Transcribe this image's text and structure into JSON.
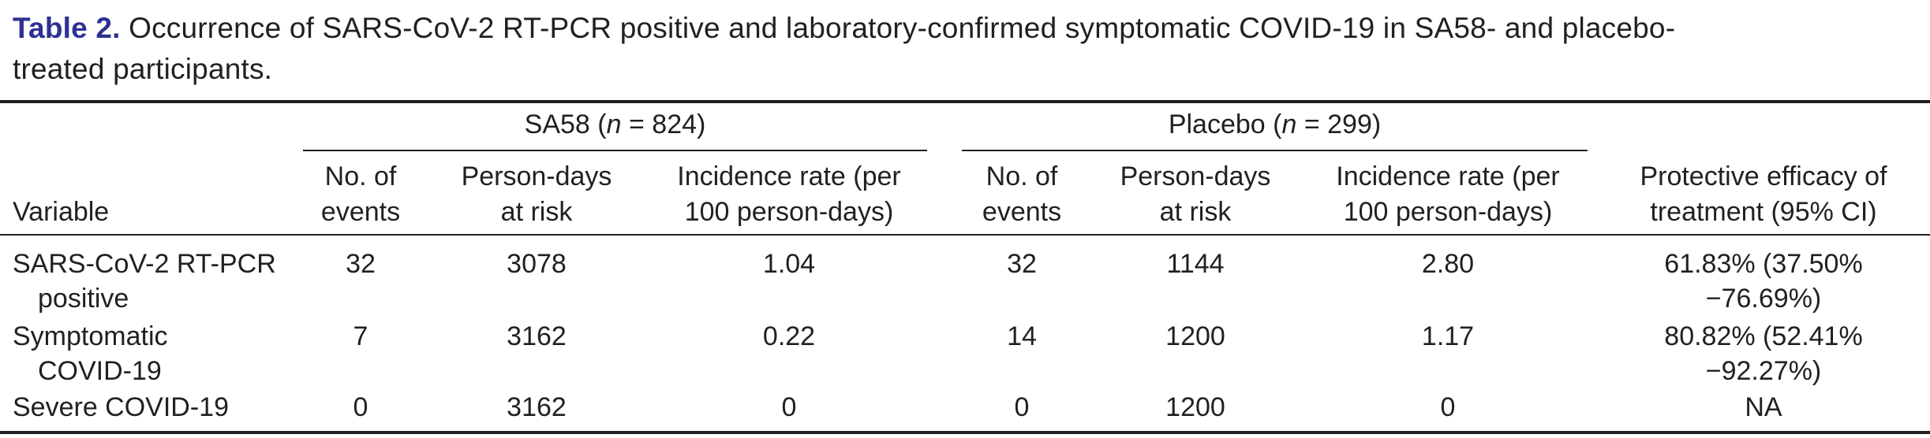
{
  "caption": {
    "label": "Table 2.",
    "text_line1": "Occurrence of SARS-CoV-2 RT-PCR positive and laboratory-confirmed symptomatic COVID-19 in SA58- and placebo-",
    "text_line2": "treated participants."
  },
  "groups": {
    "sa58": {
      "prefix": "SA58 (",
      "n_var": "n",
      "suffix": " = 824)"
    },
    "placebo": {
      "prefix": "Placebo (",
      "n_var": "n",
      "suffix": " = 299)"
    }
  },
  "headers": {
    "variable": "Variable",
    "events": [
      "No. of",
      "events"
    ],
    "person_days": [
      "Person-days",
      "at risk"
    ],
    "incidence": [
      "Incidence rate (per",
      "100 person-days)"
    ],
    "efficacy": [
      "Protective efficacy of",
      "treatment (95% CI)"
    ]
  },
  "rows": [
    {
      "variable": [
        "SARS-CoV-2 RT-PCR",
        "positive"
      ],
      "sa58_events": "32",
      "sa58_days": "3078",
      "sa58_rate": "1.04",
      "pl_events": "32",
      "pl_days": "1144",
      "pl_rate": "2.80",
      "efficacy": [
        "61.83% (37.50%",
        "−76.69%)"
      ]
    },
    {
      "variable": [
        "Symptomatic",
        "COVID-19"
      ],
      "sa58_events": "7",
      "sa58_days": "3162",
      "sa58_rate": "0.22",
      "pl_events": "14",
      "pl_days": "1200",
      "pl_rate": "1.17",
      "efficacy": [
        "80.82% (52.41%",
        "−92.27%)"
      ]
    },
    {
      "variable": [
        "Severe COVID-19"
      ],
      "sa58_events": "0",
      "sa58_days": "3162",
      "sa58_rate": "0",
      "pl_events": "0",
      "pl_days": "1200",
      "pl_rate": "0",
      "efficacy": [
        "NA"
      ]
    }
  ]
}
